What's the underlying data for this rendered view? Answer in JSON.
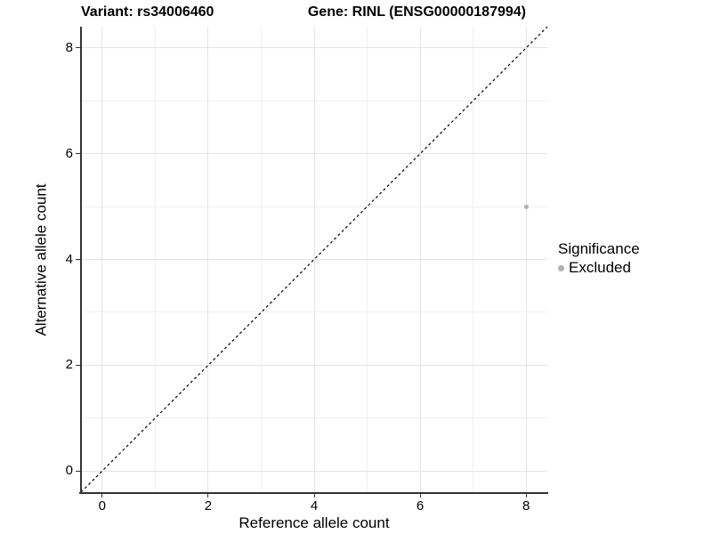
{
  "chart_data": {
    "type": "scatter",
    "titles": {
      "left": "Variant: rs34006460",
      "right": "Gene: RINL (ENSG00000187994)"
    },
    "xlabel": "Reference allele count",
    "ylabel": "Alternative allele count",
    "xlim": [
      -0.4,
      8.4
    ],
    "ylim": [
      -0.4,
      8.4
    ],
    "x_ticks": [
      0,
      2,
      4,
      6,
      8
    ],
    "y_ticks": [
      0,
      2,
      4,
      6,
      8
    ],
    "x_minor_ticks": [
      1,
      3,
      5,
      7
    ],
    "y_minor_ticks": [
      1,
      3,
      5,
      7
    ],
    "grid": "major+minor",
    "points": [
      {
        "x": 8,
        "y": 5,
        "significance": "Excluded"
      }
    ],
    "reference_line": {
      "type": "identity",
      "style": "dashed"
    },
    "legend": {
      "title": "Significance",
      "position": "right",
      "items": [
        {
          "label": "Excluded",
          "color": "#b0b0b0"
        }
      ]
    },
    "colors": {
      "point": "#b0b0b0",
      "grid_major": "#e4e4e4",
      "grid_minor": "#f0f0f0",
      "axis_line": "#333333",
      "dashed_line": "#000000",
      "text": "#000000"
    }
  }
}
